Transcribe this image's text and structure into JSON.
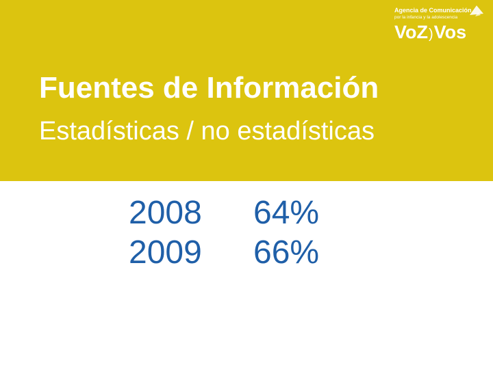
{
  "logo": {
    "line1": "Agencia de Comunicación",
    "line2": "por la infancia y la adolescencia",
    "word_left": "VoZ",
    "separator": ")",
    "word_right": "Vos"
  },
  "slide": {
    "title": "Fuentes de Información",
    "subtitle": "Estadísticas / no estadísticas",
    "rows": [
      {
        "year": "2008",
        "value": "64%"
      },
      {
        "year": "2009",
        "value": "66%"
      }
    ]
  },
  "colors": {
    "band": "#dcc40f",
    "heading_text": "#ffffff",
    "stat_text": "#1f5fa8"
  }
}
